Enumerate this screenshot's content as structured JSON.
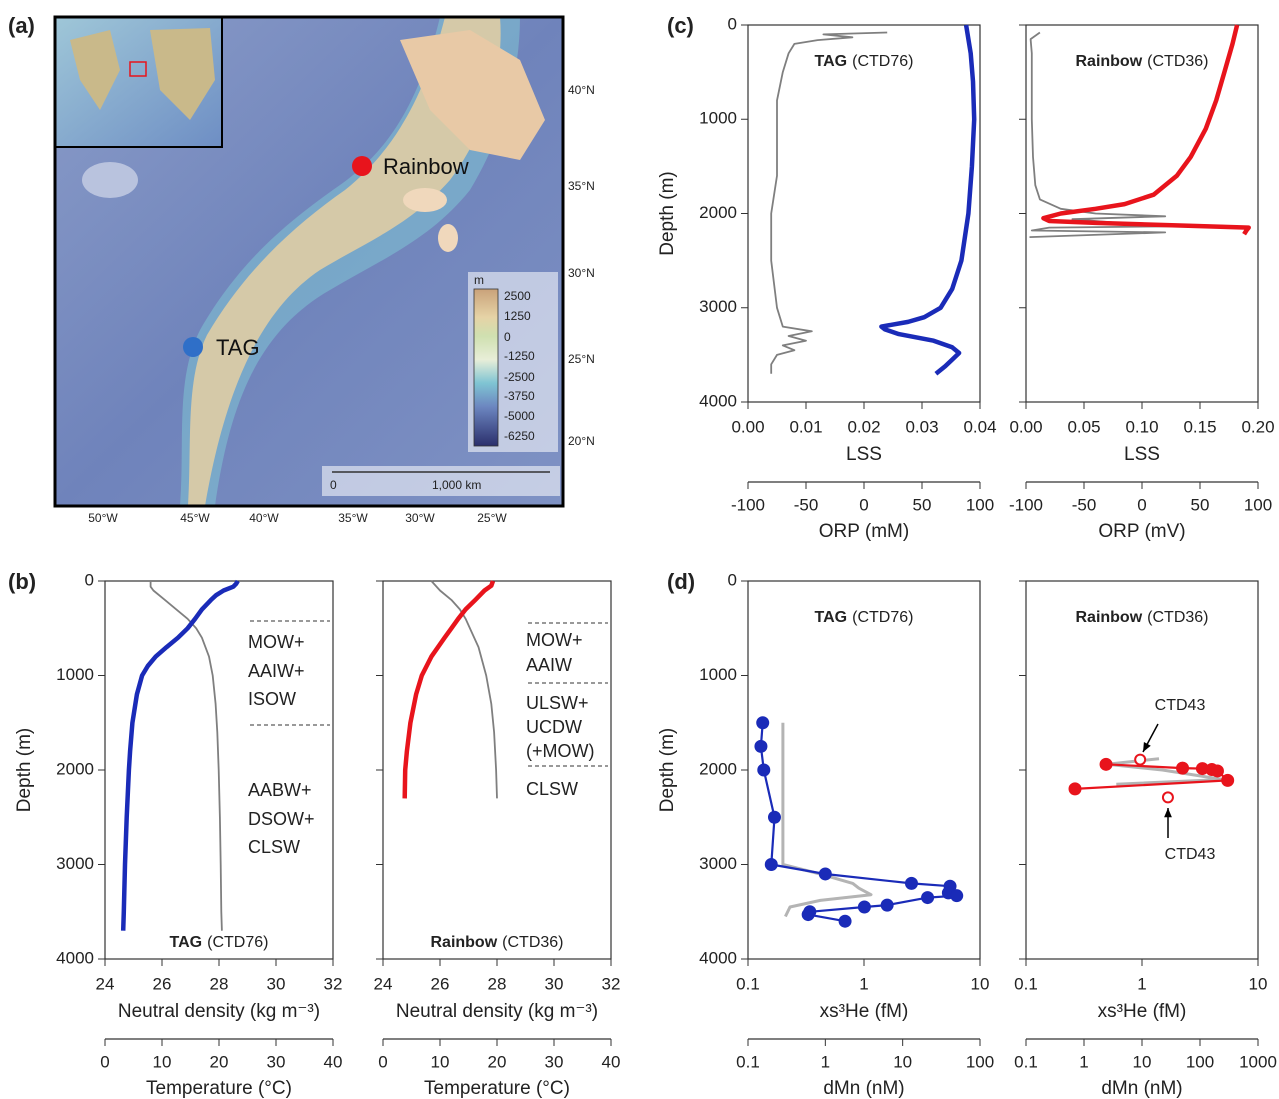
{
  "panel_labels": [
    "(a)",
    "(b)",
    "(c)",
    "(d)"
  ],
  "map": {
    "sites": [
      "Rainbow",
      "TAG"
    ],
    "lat_labels": [
      "40°N",
      "35°N",
      "30°N",
      "25°N",
      "20°N"
    ],
    "lon_labels": [
      "50°W",
      "45°W",
      "40°W",
      "35°W",
      "30°W",
      "25°W"
    ],
    "colorbar_unit": "m",
    "colorbar_labels": [
      "2500",
      "1250",
      "0",
      "-1250",
      "-2500",
      "-3750",
      "-5000",
      "-6250"
    ],
    "scale_bar": [
      "0",
      "1,000 km"
    ]
  },
  "chart_data": [
    {
      "type": "line",
      "title": "TAG",
      "subtitle": "(CTD76)",
      "ylabel": "Depth (m)",
      "ylim": [
        0,
        4000
      ],
      "y_inverted": true,
      "yticks": [
        0,
        1000,
        2000,
        3000,
        4000
      ],
      "ytick_labels": true,
      "xlabel": "Neutral density (kg m⁻³)",
      "xlim": [
        24,
        32
      ],
      "xticks": [
        24,
        26,
        28,
        30,
        32
      ],
      "xcolor": "#7f7f7f",
      "x2label": "Temperature (°C)",
      "x2lim": [
        0,
        40
      ],
      "x2ticks": [
        0,
        10,
        20,
        30,
        40
      ],
      "x2color": "#1a2bb8",
      "annotations": [
        [
          "MOW+",
          "AAIW+",
          "ISOW"
        ],
        [
          "AABW+",
          "DSOW+",
          "CLSW"
        ]
      ],
      "series": [
        {
          "axis": "x",
          "color": "#7f7f7f",
          "mode": "line",
          "depth": [
            0,
            60,
            100,
            200,
            300,
            400,
            500,
            600,
            800,
            1000,
            1300,
            1600,
            2000,
            2500,
            3000,
            3500,
            3700
          ],
          "values": [
            25.6,
            25.6,
            25.7,
            26.1,
            26.5,
            26.9,
            27.2,
            27.4,
            27.65,
            27.78,
            27.88,
            27.94,
            27.99,
            28.03,
            28.06,
            28.08,
            28.1
          ]
        },
        {
          "axis": "x2",
          "color": "#1a2bb8",
          "mode": "line",
          "depth": [
            0,
            30,
            60,
            100,
            150,
            200,
            300,
            400,
            500,
            600,
            700,
            800,
            900,
            1000,
            1200,
            1500,
            1800,
            2000,
            2500,
            3000,
            3500,
            3700
          ],
          "values": [
            23.3,
            23.0,
            22.5,
            20.8,
            19.5,
            18.6,
            17.0,
            15.8,
            14.5,
            12.8,
            10.8,
            8.9,
            7.5,
            6.5,
            5.6,
            4.8,
            4.4,
            4.2,
            3.8,
            3.5,
            3.3,
            3.2
          ]
        }
      ]
    },
    {
      "type": "line",
      "title": "Rainbow",
      "subtitle": "(CTD36)",
      "ylim": [
        0,
        4000
      ],
      "y_inverted": true,
      "yticks": [
        0,
        1000,
        2000,
        3000,
        4000
      ],
      "ytick_labels": false,
      "xlabel": "Neutral density (kg m⁻³)",
      "xlim": [
        24,
        32
      ],
      "xticks": [
        24,
        26,
        28,
        30,
        32
      ],
      "xcolor": "#7f7f7f",
      "x2label": "Temperature (°C)",
      "x2lim": [
        0,
        40
      ],
      "x2ticks": [
        0,
        10,
        20,
        30,
        40
      ],
      "x2color": "#e8141c",
      "annotations": [
        [
          "MOW+",
          "AAIW"
        ],
        [
          "ULSW+",
          "UCDW",
          "(+MOW)"
        ],
        [
          "CLSW"
        ]
      ],
      "series": [
        {
          "axis": "x",
          "color": "#7f7f7f",
          "mode": "line",
          "depth": [
            0,
            100,
            200,
            300,
            400,
            500,
            700,
            1000,
            1300,
            1600,
            2000,
            2300
          ],
          "values": [
            25.7,
            26.0,
            26.4,
            26.7,
            26.9,
            27.05,
            27.35,
            27.62,
            27.8,
            27.9,
            27.97,
            28.0
          ]
        },
        {
          "axis": "x2",
          "color": "#e8141c",
          "mode": "line",
          "depth": [
            0,
            50,
            100,
            200,
            300,
            400,
            500,
            600,
            800,
            1000,
            1200,
            1500,
            1800,
            2000,
            2300
          ],
          "values": [
            19.3,
            19.0,
            17.8,
            16.2,
            14.5,
            13.2,
            12.0,
            10.8,
            8.5,
            6.8,
            5.8,
            4.8,
            4.2,
            3.9,
            3.8
          ]
        }
      ]
    },
    {
      "type": "line",
      "title": "TAG",
      "subtitle": "(CTD76)",
      "ylabel": "Depth (m)",
      "ylim": [
        0,
        4000
      ],
      "y_inverted": true,
      "yticks": [
        0,
        1000,
        2000,
        3000,
        4000
      ],
      "ytick_labels": true,
      "xlabel": "LSS",
      "xlim": [
        0,
        0.04
      ],
      "xcolor": "#7f7f7f",
      "xticks": [
        {
          "value": 0,
          "label": "0.00"
        },
        {
          "value": 0.01,
          "label": "0.01"
        },
        {
          "value": 0.02,
          "label": "0.02"
        },
        {
          "value": 0.03,
          "label": "0.03"
        },
        {
          "value": 0.04,
          "label": "0.04"
        }
      ],
      "x2label": "ORP (mM)",
      "x2lim": [
        -100,
        100
      ],
      "x2ticks": [
        -100,
        -50,
        0,
        50,
        100
      ],
      "x2color": "#1a2bb8",
      "series": [
        {
          "axis": "x",
          "color": "#7f7f7f",
          "mode": "line",
          "depth": [
            80,
            100,
            130,
            160,
            200,
            300,
            500,
            800,
            1200,
            1600,
            2000,
            2500,
            3000,
            3200,
            3250,
            3300,
            3350,
            3400,
            3450,
            3500,
            3600,
            3700
          ],
          "values": [
            0.024,
            0.013,
            0.018,
            0.012,
            0.008,
            0.007,
            0.006,
            0.005,
            0.005,
            0.005,
            0.004,
            0.004,
            0.005,
            0.006,
            0.011,
            0.007,
            0.01,
            0.006,
            0.008,
            0.005,
            0.004,
            0.004
          ]
        },
        {
          "axis": "x2",
          "color": "#1a2bb8",
          "mode": "line",
          "depth": [
            0,
            300,
            600,
            1000,
            1500,
            2000,
            2500,
            2800,
            3000,
            3100,
            3150,
            3200,
            3230,
            3280,
            3350,
            3420,
            3480,
            3550,
            3620,
            3700
          ],
          "values": [
            88,
            92,
            94,
            95,
            93,
            90,
            84,
            76,
            66,
            52,
            38,
            15,
            18,
            30,
            60,
            76,
            82,
            76,
            70,
            62
          ]
        }
      ]
    },
    {
      "type": "line",
      "title": "Rainbow",
      "subtitle": "(CTD36)",
      "ylim": [
        0,
        4000
      ],
      "y_inverted": true,
      "yticks": [
        0,
        1000,
        2000,
        3000,
        4000
      ],
      "ytick_labels": false,
      "xlabel": "LSS",
      "xlim": [
        0,
        0.2
      ],
      "xcolor": "#7f7f7f",
      "xticks": [
        {
          "value": 0,
          "label": "0.00"
        },
        {
          "value": 0.05,
          "label": "0.05"
        },
        {
          "value": 0.1,
          "label": "0.10"
        },
        {
          "value": 0.15,
          "label": "0.15"
        },
        {
          "value": 0.2,
          "label": "0.20"
        }
      ],
      "x2label": "ORP (mV)",
      "x2lim": [
        -100,
        100
      ],
      "x2ticks": [
        -100,
        -50,
        0,
        50,
        100
      ],
      "x2color": "#e8141c",
      "series": [
        {
          "axis": "x",
          "color": "#7f7f7f",
          "mode": "line",
          "depth": [
            80,
            150,
            300,
            600,
            1000,
            1400,
            1700,
            1850,
            1950,
            2000,
            2030,
            2060,
            2100,
            2130,
            2150,
            2180,
            2200,
            2250
          ],
          "values": [
            0.012,
            0.004,
            0.005,
            0.005,
            0.005,
            0.006,
            0.008,
            0.012,
            0.03,
            0.06,
            0.12,
            0.04,
            0.08,
            0.17,
            0.02,
            0.005,
            0.12,
            0.003
          ]
        },
        {
          "axis": "x2",
          "color": "#e8141c",
          "mode": "line",
          "depth": [
            0,
            200,
            500,
            800,
            1100,
            1400,
            1600,
            1800,
            1900,
            1950,
            2000,
            2050,
            2080,
            2100,
            2130,
            2150,
            2180,
            2220
          ],
          "values": [
            82,
            78,
            71,
            64,
            55,
            42,
            30,
            10,
            -15,
            -40,
            -70,
            -85,
            -80,
            -40,
            40,
            92,
            90,
            88
          ]
        }
      ]
    },
    {
      "type": "line",
      "title": "TAG",
      "subtitle": "(CTD76)",
      "ylabel": "Depth (m)",
      "ylim": [
        0,
        4000
      ],
      "y_inverted": true,
      "yticks": [
        0,
        1000,
        2000,
        3000,
        4000
      ],
      "ytick_labels": true,
      "xlabel": "xs³He (fM)",
      "xlim": [
        0.1,
        10
      ],
      "xscale": "log",
      "xticks": [
        0.1,
        1,
        10
      ],
      "xcolor": "#a6a6a6",
      "x2label": "dMn (nM)",
      "x2lim": [
        0.1,
        100
      ],
      "x2scale": "log",
      "x2ticks": [
        0.1,
        1,
        10,
        100
      ],
      "x2color": "#1a2bb8",
      "series": [
        {
          "axis": "x",
          "color": "#b4b4b4",
          "mode": "line",
          "depth": [
            1500,
            2000,
            2500,
            3000,
            3100,
            3200,
            3250,
            3320,
            3380,
            3450,
            3550
          ],
          "values": [
            0.2,
            0.2,
            0.2,
            0.2,
            0.42,
            0.8,
            0.9,
            1.15,
            0.42,
            0.23,
            0.21
          ]
        },
        {
          "axis": "x2",
          "color": "#1a2bb8",
          "mode": "line+markers",
          "depth": [
            1500,
            1750,
            2000,
            2500,
            3000,
            3100,
            3200,
            3230,
            3300,
            3330,
            3350,
            3430,
            3450,
            3500,
            3530,
            3600
          ],
          "values": [
            0.155,
            0.147,
            0.16,
            0.22,
            0.2,
            1.0,
            13,
            41,
            39,
            50,
            21,
            6.3,
            3.2,
            0.63,
            0.6,
            1.8
          ]
        }
      ]
    },
    {
      "type": "line",
      "title": "Rainbow",
      "subtitle": "(CTD36)",
      "ylim": [
        0,
        4000
      ],
      "y_inverted": true,
      "yticks": [
        0,
        1000,
        2000,
        3000,
        4000
      ],
      "ytick_labels": false,
      "xlabel": "xs³He (fM)",
      "xlim": [
        0.1,
        10
      ],
      "xscale": "log",
      "xticks": [
        0.1,
        1,
        10
      ],
      "xcolor": "#a6a6a6",
      "x2label": "dMn (nM)",
      "x2lim": [
        0.1,
        1000
      ],
      "x2scale": "log",
      "x2ticks": [
        0.1,
        1,
        10,
        100,
        1000
      ],
      "x2color": "#e8141c",
      "annotations": [
        "CTD43",
        "CTD43"
      ],
      "series": [
        {
          "axis": "x",
          "color": "#b4b4b4",
          "mode": "line",
          "depth": [
            1880,
            1940,
            2000,
            2100,
            2150
          ],
          "values": [
            1.4,
            0.5,
            1.5,
            5.0,
            0.6
          ]
        },
        {
          "axis": "x2",
          "color": "#e8141c",
          "mode": "line+markers",
          "depth": [
            1940,
            1980,
            1985,
            1995,
            2010,
            2110,
            2200
          ],
          "values": [
            2.4,
            50,
            110,
            160,
            200,
            300,
            0.7
          ]
        },
        {
          "axis": "x2",
          "color": "#e8141c",
          "mode": "markers",
          "marker_fill": false,
          "depth": [
            1890,
            2290
          ],
          "values": [
            9.3,
            28
          ]
        }
      ]
    }
  ]
}
